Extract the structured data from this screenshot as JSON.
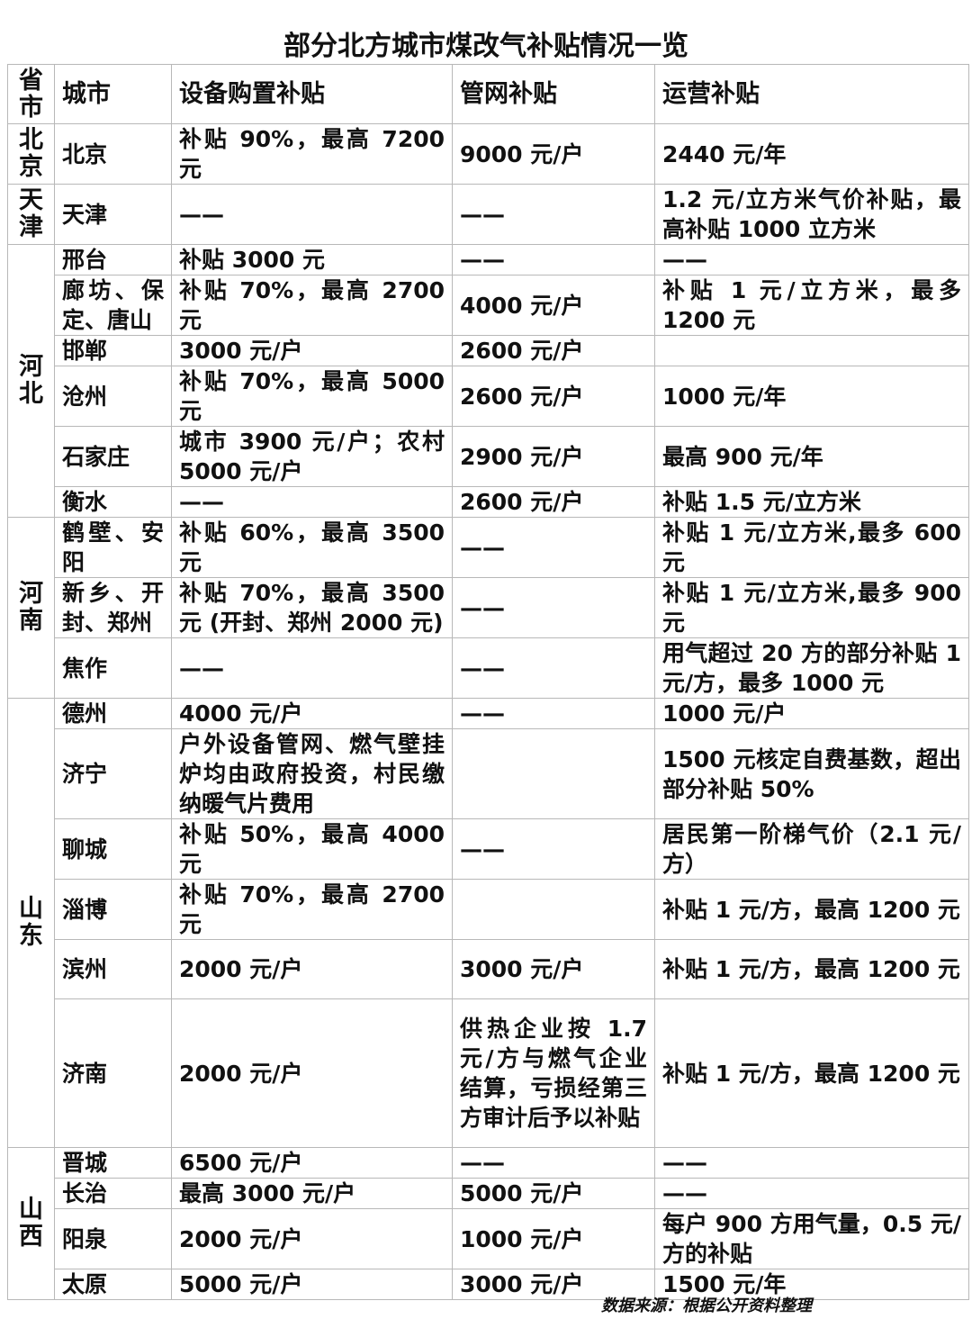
{
  "title": "部分北方城市煤改气补贴情况一览",
  "headers": {
    "province": "省市",
    "city": "城市",
    "equipment": "设备购置补贴",
    "pipe": "管网补贴",
    "operation": "运营补贴"
  },
  "provinces": [
    {
      "name": "北京",
      "cities": [
        {
          "city": "北京",
          "equipment": "补贴 90%，最高 7200 元",
          "pipe": "9000 元/户",
          "operation": "2440 元/年"
        }
      ]
    },
    {
      "name": "天津",
      "cities": [
        {
          "city": "天津",
          "equipment": "——",
          "pipe": "——",
          "operation": "1.2 元/立方米气价补贴，最高补贴 1000 立方米"
        }
      ]
    },
    {
      "name": "河北",
      "cities": [
        {
          "city": "邢台",
          "equipment": "补贴 3000 元",
          "pipe": "——",
          "operation": "——"
        },
        {
          "city": "廊坊、保定、唐山",
          "equipment": "补贴 70%，最高 2700 元",
          "pipe": "4000 元/户",
          "operation": "补贴 1 元/立方米，最多 1200 元"
        },
        {
          "city": "邯郸",
          "equipment": "3000 元/户",
          "pipe": "2600 元/户",
          "operation": ""
        },
        {
          "city": "沧州",
          "equipment": "补贴 70%，最高 5000 元",
          "pipe": "2600 元/户",
          "operation": "1000 元/年"
        },
        {
          "city": "石家庄",
          "equipment": "城市 3900 元/户；农村 5000 元/户",
          "pipe": "2900 元/户",
          "operation": "最高 900 元/年"
        },
        {
          "city": "衡水",
          "equipment": "——",
          "pipe": "2600 元/户",
          "operation": "补贴 1.5 元/立方米"
        }
      ]
    },
    {
      "name": "河南",
      "cities": [
        {
          "city": "鹤壁、安阳",
          "equipment": "补贴 60%，最高 3500 元",
          "pipe": "——",
          "operation": "补贴 1 元/立方米,最多 600 元"
        },
        {
          "city": "新乡、开封、郑州",
          "equipment": "补贴 70%，最高 3500 元 (开封、郑州 2000 元)",
          "pipe": "——",
          "operation": "补贴 1 元/立方米,最多 900 元"
        },
        {
          "city": "焦作",
          "equipment": "——",
          "pipe": "——",
          "operation": "用气超过 20 方的部分补贴 1 元/方，最多 1000 元"
        }
      ]
    },
    {
      "name": "山东",
      "cities": [
        {
          "city": "德州",
          "equipment": "4000 元/户",
          "pipe": "——",
          "operation": "1000 元/户"
        },
        {
          "city": "济宁",
          "equipment": "户外设备管网、燃气壁挂炉均由政府投资，村民缴纳暖气片费用",
          "pipe": "",
          "operation": "1500 元核定自费基数，超出部分补贴 50%"
        },
        {
          "city": "聊城",
          "equipment": "补贴 50%，最高 4000 元",
          "pipe": "——",
          "operation": "居民第一阶梯气价（2.1 元/方）"
        },
        {
          "city": "淄博",
          "equipment": "补贴 70%，最高 2700 元",
          "pipe": "",
          "operation": "补贴 1 元/方，最高 1200 元"
        },
        {
          "city": "滨州",
          "equipment": "2000 元/户",
          "pipe": "3000 元/户",
          "operation": "补贴 1 元/方，最高 1200 元"
        },
        {
          "city": "济南",
          "equipment": "2000 元/户",
          "pipe": "供热企业按 1.7 元/方与燃气企业结算，亏损经第三方审计后予以补贴",
          "operation": "补贴 1 元/方，最高 1200 元"
        }
      ]
    },
    {
      "name": "山西",
      "cities": [
        {
          "city": "晋城",
          "equipment": "6500 元/户",
          "pipe": "——",
          "operation": "——"
        },
        {
          "city": "长治",
          "equipment": "最高 3000 元/户",
          "pipe": "5000 元/户",
          "operation": "——"
        },
        {
          "city": "阳泉",
          "equipment": "2000 元/户",
          "pipe": "1000 元/户",
          "operation": "每户 900 方用气量，0.5 元/方的补贴"
        },
        {
          "city": "太原",
          "equipment": "5000 元/户",
          "pipe": "3000 元/户",
          "operation": "1500 元/年"
        }
      ]
    }
  ],
  "source": "数据来源：根据公开资料整理"
}
